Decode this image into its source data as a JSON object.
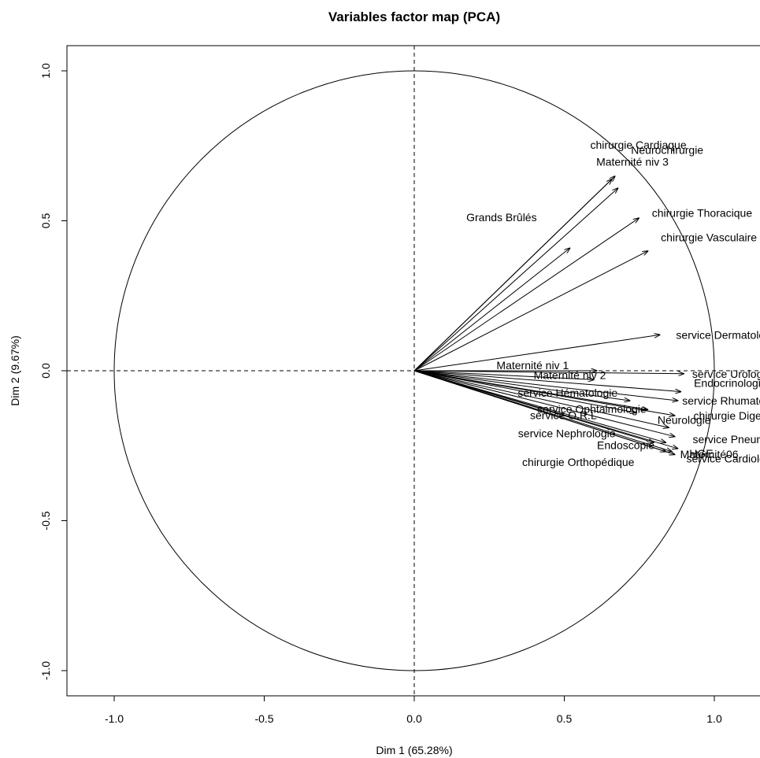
{
  "chart_data": {
    "type": "scatter",
    "title": "Variables factor map (PCA)",
    "xlabel": "Dim 1 (65.28%)",
    "ylabel": "Dim 2 (9.67%)",
    "xlim": [
      -1.16,
      1.16
    ],
    "ylim": [
      -1.08,
      1.08
    ],
    "x_ticks": [
      "-1.0",
      "-0.5",
      "0.0",
      "0.5",
      "1.0"
    ],
    "y_ticks": [
      "-1.0",
      "-0.5",
      "0.0",
      "0.5",
      "1.0"
    ],
    "unit_circle": true,
    "reference_lines": "dashed at x=0 and y=0",
    "variables": [
      {
        "name": "Neurochirurgie",
        "x": 0.67,
        "y": 0.65
      },
      {
        "name": "chirurgie Cardiaque",
        "x": 0.66,
        "y": 0.64
      },
      {
        "name": "Maternité niv 3",
        "x": 0.68,
        "y": 0.61
      },
      {
        "name": "chirurgie Thoracique",
        "x": 0.75,
        "y": 0.51
      },
      {
        "name": "chirurgie Vasculaire",
        "x": 0.78,
        "y": 0.4
      },
      {
        "name": "Grands Brûlés",
        "x": 0.52,
        "y": 0.41
      },
      {
        "name": "service Dermatologie",
        "x": 0.82,
        "y": 0.12
      },
      {
        "name": "Maternité niv 1",
        "x": 0.61,
        "y": 0.0
      },
      {
        "name": "service Urologie",
        "x": 0.9,
        "y": -0.01
      },
      {
        "name": "Maternité niv 2",
        "x": 0.6,
        "y": -0.03
      },
      {
        "name": "Endocrinologie",
        "x": 0.89,
        "y": -0.07
      },
      {
        "name": "service Hématologie",
        "x": 0.72,
        "y": -0.1
      },
      {
        "name": "service Rhumatologie",
        "x": 0.88,
        "y": -0.1
      },
      {
        "name": "service Ophtalmologie",
        "x": 0.78,
        "y": -0.13
      },
      {
        "name": "chirurgie Digestive",
        "x": 0.87,
        "y": -0.15
      },
      {
        "name": "service O.R.L",
        "x": 0.74,
        "y": -0.14
      },
      {
        "name": "Neurologie",
        "x": 0.85,
        "y": -0.19
      },
      {
        "name": "service Pneumologie",
        "x": 0.87,
        "y": -0.22
      },
      {
        "name": "Endoscopie",
        "x": 0.84,
        "y": -0.24
      },
      {
        "name": "HGE",
        "x": 0.88,
        "y": -0.26
      },
      {
        "name": "service Nephrologie",
        "x": 0.8,
        "y": -0.24
      },
      {
        "name": "Maternité06",
        "x": 0.86,
        "y": -0.27
      },
      {
        "name": "service Cardiologie",
        "x": 0.87,
        "y": -0.28
      },
      {
        "name": "chirurgie Orthopédique",
        "x": 0.84,
        "y": -0.27
      }
    ]
  }
}
